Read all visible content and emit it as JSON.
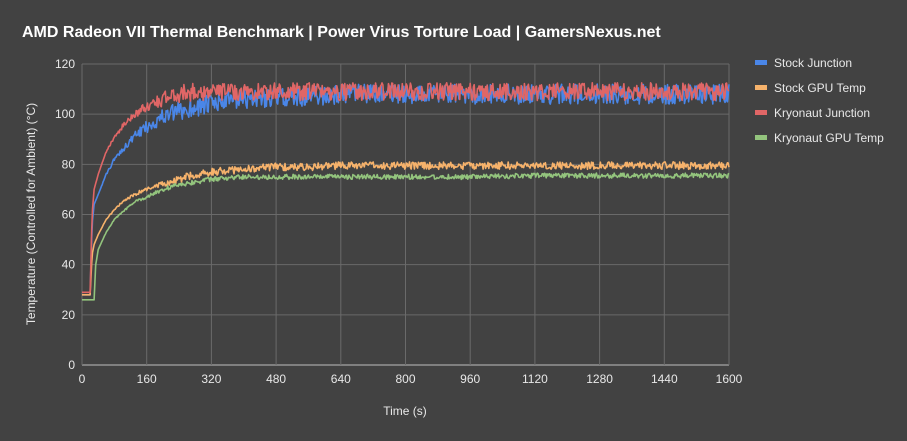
{
  "chart_data": {
    "type": "line",
    "title": "AMD Radeon VII Thermal Benchmark | Power Virus Torture Load | GamersNexus.net",
    "xlabel": "Time (s)",
    "ylabel": "Temperature (Controlled for Ambient) (°C)",
    "xlim": [
      0,
      1600
    ],
    "ylim": [
      0,
      120
    ],
    "x_ticks": [
      "0",
      "160",
      "320",
      "480",
      "640",
      "800",
      "960",
      "1120",
      "1280",
      "1440",
      "1600"
    ],
    "y_ticks": [
      "0",
      "20",
      "40",
      "60",
      "80",
      "100",
      "120"
    ],
    "grid": true,
    "legend_position": "right",
    "series": [
      {
        "name": "Stock Junction",
        "color": "#4a86e8",
        "x": [
          0,
          10,
          20,
          25,
          30,
          40,
          60,
          80,
          100,
          130,
          160,
          200,
          240,
          280,
          320,
          400,
          480,
          560,
          640,
          800,
          960,
          1120,
          1280,
          1440,
          1600
        ],
        "y": [
          28,
          28,
          28,
          56,
          64,
          68,
          76,
          82,
          86,
          91,
          95,
          99,
          101,
          103,
          104,
          106,
          107,
          107,
          108,
          108,
          108,
          108,
          108,
          108,
          108
        ],
        "noise": 4
      },
      {
        "name": "Stock GPU Temp",
        "color": "#f6b26b",
        "x": [
          0,
          10,
          20,
          25,
          30,
          40,
          60,
          80,
          100,
          130,
          160,
          200,
          240,
          280,
          320,
          400,
          480,
          560,
          640,
          800,
          960,
          1120,
          1280,
          1440,
          1600
        ],
        "y": [
          28,
          28,
          28,
          44,
          48,
          52,
          58,
          62,
          65,
          68,
          70,
          72,
          74,
          76,
          77,
          78,
          79,
          79,
          79.5,
          79.5,
          79.5,
          79.5,
          79.5,
          79.5,
          79.5
        ],
        "noise": 1.5
      },
      {
        "name": "Kryonaut Junction",
        "color": "#e06666",
        "x": [
          0,
          10,
          20,
          25,
          30,
          40,
          60,
          80,
          100,
          130,
          160,
          200,
          240,
          280,
          320,
          400,
          480,
          560,
          640,
          800,
          960,
          1120,
          1280,
          1440,
          1600
        ],
        "y": [
          29,
          29,
          29,
          60,
          70,
          76,
          85,
          91,
          95,
          100,
          103,
          106,
          108,
          109,
          109,
          109,
          109,
          109,
          109,
          109,
          109,
          109,
          109,
          109,
          109
        ],
        "noise": 3.5
      },
      {
        "name": "Kryonaut GPU Temp",
        "color": "#93c47d",
        "x": [
          0,
          10,
          20,
          30,
          34,
          40,
          60,
          80,
          100,
          130,
          160,
          200,
          240,
          280,
          320,
          400,
          480,
          560,
          640,
          800,
          960,
          1120,
          1280,
          1440,
          1600
        ],
        "y": [
          26,
          26,
          26,
          26,
          40,
          46,
          53,
          58,
          61,
          65,
          67,
          70,
          72,
          73,
          74,
          75,
          75,
          75,
          75,
          75,
          75,
          75.5,
          75.5,
          75.5,
          75.5
        ],
        "noise": 1
      }
    ]
  }
}
